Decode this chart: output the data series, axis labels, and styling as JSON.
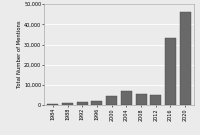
{
  "years": [
    1984,
    1988,
    1992,
    1996,
    2000,
    2004,
    2008,
    2012,
    2016,
    2020
  ],
  "values": [
    500,
    900,
    1500,
    2000,
    4500,
    7000,
    5500,
    5000,
    33000,
    46000
  ],
  "bar_color": "#696969",
  "bar_edge_color": "#444444",
  "ylabel": "Total Number of Mentions",
  "ylim": [
    0,
    50000
  ],
  "yticks": [
    0,
    10000,
    20000,
    30000,
    40000,
    50000
  ],
  "ytick_labels": [
    "0",
    "10,000",
    "20,000",
    "30,000",
    "40,000",
    "50,000"
  ],
  "background_color": "#ebebeb",
  "grid_color": "white",
  "ylabel_fontsize": 3.8,
  "tick_fontsize": 3.5
}
